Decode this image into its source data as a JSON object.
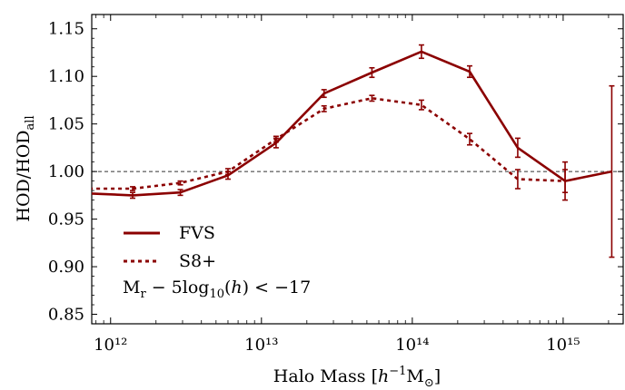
{
  "chart_data": {
    "type": "line",
    "xlabel": "Halo Mass [h⁻¹M⊙]",
    "ylabel": "HOD/HODall",
    "xscale": "log",
    "xlim": [
      750000000000.0,
      2500000000000000.0
    ],
    "ylim": [
      0.84,
      1.165
    ],
    "x_ticks": [
      1000000000000.0,
      10000000000000.0,
      100000000000000.0,
      1000000000000000.0
    ],
    "x_tick_labels": [
      "10¹²",
      "10¹³",
      "10¹⁴",
      "10¹⁵"
    ],
    "y_ticks": [
      0.85,
      0.9,
      0.95,
      1.0,
      1.05,
      1.1,
      1.15
    ],
    "y_tick_labels": [
      "0.85",
      "0.90",
      "0.95",
      "1.00",
      "1.05",
      "1.10",
      "1.15"
    ],
    "reference_line": {
      "y": 1.0,
      "style": "dashed"
    },
    "legend_position": "lower-left",
    "annotation": "Mr − 5log10(h) < −17",
    "grid": false,
    "series": [
      {
        "name": "FVS",
        "style": "solid",
        "color": "#8b0000",
        "x": [
          720000000000.0,
          1400000000000.0,
          2900000000000.0,
          6000000000000.0,
          12500000000000.0,
          26000000000000.0,
          54000000000000.0,
          115000000000000.0,
          240000000000000.0,
          500000000000000.0,
          1030000000000000.0,
          2100000000000000.0
        ],
        "y": [
          0.977,
          0.975,
          0.978,
          0.996,
          1.03,
          1.082,
          1.104,
          1.126,
          1.105,
          1.025,
          0.99,
          1.0
        ],
        "err": [
          0.003,
          0.003,
          0.003,
          0.004,
          0.005,
          0.004,
          0.005,
          0.007,
          0.006,
          0.01,
          0.02,
          0.09
        ]
      },
      {
        "name": "S8+",
        "style": "dashed",
        "color": "#8b0000",
        "x": [
          720000000000.0,
          1400000000000.0,
          2900000000000.0,
          6000000000000.0,
          12500000000000.0,
          26000000000000.0,
          54000000000000.0,
          115000000000000.0,
          240000000000000.0,
          500000000000000.0,
          1030000000000000.0
        ],
        "y": [
          0.982,
          0.982,
          0.988,
          1.0,
          1.034,
          1.066,
          1.077,
          1.07,
          1.034,
          0.992,
          0.99
        ],
        "err": [
          0.002,
          0.002,
          0.002,
          0.003,
          0.003,
          0.003,
          0.003,
          0.005,
          0.006,
          0.01,
          0.012
        ]
      }
    ]
  }
}
